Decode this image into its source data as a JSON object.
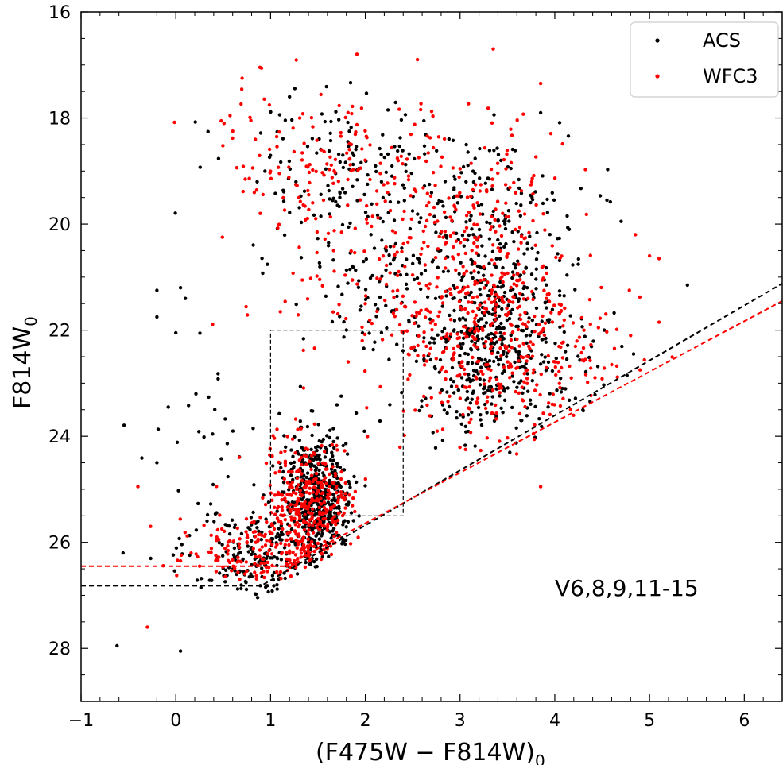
{
  "chart_data": {
    "type": "scatter",
    "xlabel": "(F475W − F814W)",
    "xlabel_sub": "0",
    "ylabel": "F814W",
    "ylabel_sub": "0",
    "xlim": [
      -1,
      6.4
    ],
    "ylim": [
      29,
      16
    ],
    "y_inverted": true,
    "x_ticks": [
      -1,
      0,
      1,
      2,
      3,
      4,
      5,
      6
    ],
    "x_tick_labels": [
      "−1",
      "0",
      "1",
      "2",
      "3",
      "4",
      "5",
      "6"
    ],
    "y_ticks": [
      16,
      18,
      20,
      22,
      24,
      26,
      28
    ],
    "y_tick_labels": [
      "16",
      "18",
      "20",
      "22",
      "24",
      "26",
      "28"
    ],
    "grid": false,
    "legend_position": "top-right",
    "annotation": "V6,8,9,11-15",
    "colors": {
      "acs": "#000000",
      "wfc3": "#ff0000"
    },
    "series": [
      {
        "name": "ACS",
        "color": "#000000",
        "marker": "dot",
        "clusters": [
          {
            "cx": 1.5,
            "cy": 25.1,
            "sx": 0.18,
            "sy": 0.6,
            "n": 480
          },
          {
            "cx": 0.9,
            "cy": 26.2,
            "sx": 0.4,
            "sy": 0.45,
            "n": 220
          },
          {
            "cx": 3.3,
            "cy": 22.2,
            "sx": 0.35,
            "sy": 0.9,
            "n": 420
          },
          {
            "cx": 2.4,
            "cy": 21.0,
            "sx": 0.6,
            "sy": 1.0,
            "n": 160
          },
          {
            "cx": 1.8,
            "cy": 18.9,
            "sx": 0.6,
            "sy": 0.7,
            "n": 140
          },
          {
            "cx": 3.3,
            "cy": 19.8,
            "sx": 0.45,
            "sy": 0.8,
            "n": 130
          },
          {
            "cx": 4.1,
            "cy": 22.5,
            "sx": 0.35,
            "sy": 0.6,
            "n": 50
          },
          {
            "cx": 0.3,
            "cy": 24.0,
            "sx": 0.35,
            "sy": 1.2,
            "n": 25
          }
        ],
        "outliers": [
          {
            "x": -0.62,
            "y": 27.95
          },
          {
            "x": 0.05,
            "y": 28.05
          },
          {
            "x": -0.2,
            "y": 21.25
          },
          {
            "x": 0.05,
            "y": 21.2
          },
          {
            "x": -0.2,
            "y": 21.75
          },
          {
            "x": -0.08,
            "y": 23.45
          },
          {
            "x": -0.2,
            "y": 24.5
          },
          {
            "x": 0.0,
            "y": 22.05
          },
          {
            "x": 5.4,
            "y": 21.15
          },
          {
            "x": 4.7,
            "y": 19.95
          },
          {
            "x": 4.55,
            "y": 19.55
          },
          {
            "x": 3.85,
            "y": 17.9
          },
          {
            "x": 1.2,
            "y": 17.6
          }
        ]
      },
      {
        "name": "WFC3",
        "color": "#ff0000",
        "marker": "dot",
        "clusters": [
          {
            "cx": 1.4,
            "cy": 25.3,
            "sx": 0.22,
            "sy": 0.6,
            "n": 330
          },
          {
            "cx": 0.85,
            "cy": 26.3,
            "sx": 0.4,
            "sy": 0.45,
            "n": 230
          },
          {
            "cx": 3.3,
            "cy": 22.2,
            "sx": 0.45,
            "sy": 0.95,
            "n": 360
          },
          {
            "cx": 2.3,
            "cy": 21.0,
            "sx": 0.65,
            "sy": 1.0,
            "n": 160
          },
          {
            "cx": 1.7,
            "cy": 18.7,
            "sx": 0.6,
            "sy": 0.7,
            "n": 150
          },
          {
            "cx": 3.2,
            "cy": 19.5,
            "sx": 0.5,
            "sy": 0.8,
            "n": 120
          },
          {
            "cx": 4.2,
            "cy": 22.8,
            "sx": 0.4,
            "sy": 0.7,
            "n": 60
          }
        ],
        "outliers": [
          {
            "x": -0.3,
            "y": 27.6
          },
          {
            "x": -0.4,
            "y": 24.95
          },
          {
            "x": 0.6,
            "y": 18.25
          },
          {
            "x": 0.7,
            "y": 17.25
          },
          {
            "x": 2.55,
            "y": 16.9
          },
          {
            "x": 3.35,
            "y": 16.7
          },
          {
            "x": 3.85,
            "y": 17.35
          },
          {
            "x": 4.85,
            "y": 20.2
          },
          {
            "x": 5.0,
            "y": 20.6
          },
          {
            "x": 5.1,
            "y": 20.65
          },
          {
            "x": 5.1,
            "y": 21.85
          },
          {
            "x": 4.9,
            "y": 22.75
          },
          {
            "x": 3.85,
            "y": 24.95
          },
          {
            "x": 4.8,
            "y": 22.1
          },
          {
            "x": 4.6,
            "y": 22.65
          }
        ]
      }
    ],
    "lines": [
      {
        "name": "ACS limit",
        "color": "#000000",
        "style": "dashed",
        "points": [
          [
            -1,
            26.82
          ],
          [
            0.9,
            26.82
          ],
          [
            6.4,
            21.12
          ]
        ]
      },
      {
        "name": "WFC3 limit",
        "color": "#ff0000",
        "style": "dashed",
        "points": [
          [
            -1,
            26.45
          ],
          [
            1.15,
            26.45
          ],
          [
            6.4,
            21.45
          ]
        ]
      }
    ],
    "box": {
      "color": "#000000",
      "style": "dashed",
      "x": [
        1.0,
        2.4
      ],
      "y": [
        22.0,
        25.5
      ]
    }
  }
}
